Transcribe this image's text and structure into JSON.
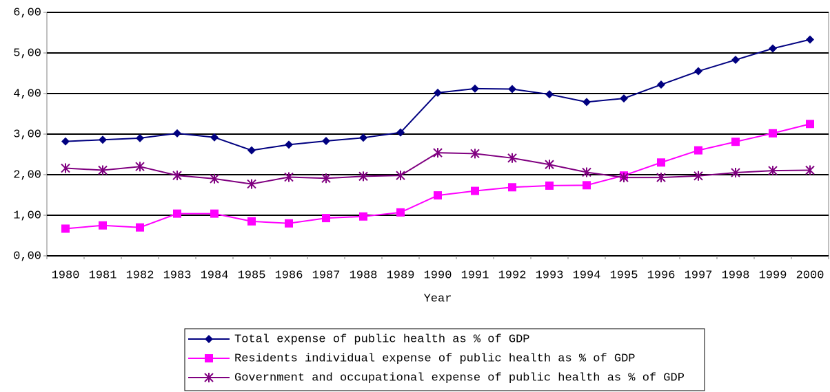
{
  "chart_data": {
    "type": "line",
    "x_label": "Year",
    "categories": [
      "1980",
      "1981",
      "1982",
      "1983",
      "1984",
      "1985",
      "1986",
      "1987",
      "1988",
      "1989",
      "1990",
      "1991",
      "1992",
      "1993",
      "1994",
      "1995",
      "1996",
      "1997",
      "1998",
      "1999",
      "2000"
    ],
    "series": [
      {
        "name": "Total expense of public health as % of GDP",
        "color": "#000080",
        "marker": "diamond",
        "values": [
          2.82,
          2.86,
          2.9,
          3.02,
          2.92,
          2.6,
          2.74,
          2.83,
          2.91,
          3.04,
          4.02,
          4.12,
          4.11,
          3.98,
          3.79,
          3.88,
          4.22,
          4.55,
          4.83,
          5.11,
          5.33
        ]
      },
      {
        "name": "Residents individual expense of public health as % of GDP",
        "color": "#ff00ff",
        "marker": "square",
        "values": [
          0.67,
          0.75,
          0.7,
          1.04,
          1.04,
          0.85,
          0.8,
          0.93,
          0.97,
          1.07,
          1.49,
          1.6,
          1.69,
          1.73,
          1.74,
          1.98,
          2.3,
          2.6,
          2.81,
          3.02,
          3.25
        ]
      },
      {
        "name": "Government and occupational expense of public health as % of GDP",
        "color": "#800080",
        "marker": "asterisk",
        "values": [
          2.16,
          2.11,
          2.2,
          1.98,
          1.9,
          1.77,
          1.94,
          1.91,
          1.96,
          1.98,
          2.54,
          2.52,
          2.41,
          2.25,
          2.06,
          1.93,
          1.93,
          1.97,
          2.05,
          2.1,
          2.11
        ]
      }
    ],
    "ylim": [
      0,
      6
    ],
    "yticks": [
      {
        "value": 0,
        "label": "0,00"
      },
      {
        "value": 1,
        "label": "1,00"
      },
      {
        "value": 2,
        "label": "2,00"
      },
      {
        "value": 3,
        "label": "3,00"
      },
      {
        "value": 4,
        "label": "4,00"
      },
      {
        "value": 5,
        "label": "5,00"
      },
      {
        "value": 6,
        "label": "6,00"
      }
    ],
    "grid": true,
    "legend": "bottom"
  }
}
